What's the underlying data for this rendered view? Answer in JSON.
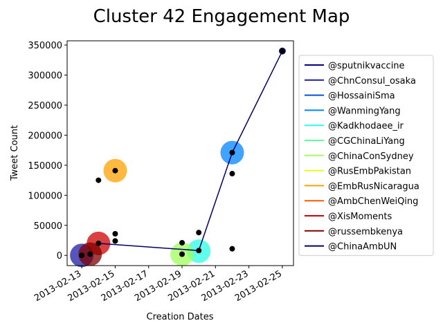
{
  "chart_data": {
    "type": "scatter",
    "title": "Cluster 42 Engagement Map",
    "xlabel": "Creation Dates",
    "ylabel": "Tweet Count",
    "ylim": [
      -17000,
      357000
    ],
    "xlim": [
      "2013-02-12T03:00",
      "2013-02-25T16:00"
    ],
    "x_ticks": [
      "2013-02-13",
      "2013-02-15",
      "2013-02-17",
      "2013-02-19",
      "2013-02-21",
      "2013-02-23",
      "2013-02-25"
    ],
    "y_ticks": [
      0,
      50000,
      100000,
      150000,
      200000,
      250000,
      300000,
      350000
    ],
    "grid": false,
    "legend_position": "right",
    "series": [
      {
        "name": "@sputnikvaccine",
        "color": "#00007f",
        "points": [
          {
            "x": "2013-02-25",
            "y": 340000,
            "size": "small"
          }
        ]
      },
      {
        "name": "@ChnConsul_osaka",
        "color": "#1c1ca6",
        "points": [
          {
            "x": "2013-02-13",
            "y": 0,
            "size": "large"
          }
        ]
      },
      {
        "name": "@HossainiSma",
        "color": "#0050d8",
        "points": []
      },
      {
        "name": "@WanmingYang",
        "color": "#0085ff",
        "points": [
          {
            "x": "2013-02-22",
            "y": 171000,
            "size": "large"
          }
        ]
      },
      {
        "name": "@Kadkhodaee_ir",
        "color": "#29ffe6",
        "points": [
          {
            "x": "2013-02-20",
            "y": 7000,
            "size": "large"
          }
        ]
      },
      {
        "name": "@CGChinaLiYang",
        "color": "#5cffa0",
        "points": []
      },
      {
        "name": "@ChinaConSydney",
        "color": "#a0ff5c",
        "points": [
          {
            "x": "2013-02-19",
            "y": 2000,
            "size": "large"
          }
        ]
      },
      {
        "name": "@RusEmbPakistan",
        "color": "#e6ff19",
        "points": []
      },
      {
        "name": "@EmbRusNicaragua",
        "color": "#ffa000",
        "points": [
          {
            "x": "2013-02-15",
            "y": 141000,
            "size": "large"
          }
        ]
      },
      {
        "name": "@AmbChenWeiQing",
        "color": "#ff5a00",
        "points": []
      },
      {
        "name": "@XisMoments",
        "color": "#cc0000",
        "points": [
          {
            "x": "2013-02-14",
            "y": 20000,
            "size": "large"
          }
        ]
      },
      {
        "name": "@russembkenya",
        "color": "#7f0000",
        "points": [
          {
            "x": "2013-02-13T12:00",
            "y": 2000,
            "size": "large"
          }
        ]
      },
      {
        "name": "@ChinaAmbUN",
        "color": "#000066",
        "points": []
      }
    ],
    "line": {
      "name": "@ChinaAmbUN",
      "color": "#00006b",
      "x": [
        "2013-02-14",
        "2013-02-20",
        "2013-02-22",
        "2013-02-25"
      ],
      "y": [
        20000,
        8000,
        171000,
        340000
      ]
    },
    "black_points": {
      "color": "#000000",
      "x": [
        "2013-02-13",
        "2013-02-13T12:00",
        "2013-02-14",
        "2013-02-14",
        "2013-02-15",
        "2013-02-15",
        "2013-02-15",
        "2013-02-19",
        "2013-02-19",
        "2013-02-20",
        "2013-02-20",
        "2013-02-22",
        "2013-02-22",
        "2013-02-22",
        "2013-02-25"
      ],
      "y": [
        0,
        2000,
        125000,
        20000,
        141000,
        36000,
        24000,
        21000,
        2000,
        38000,
        8000,
        171000,
        136000,
        11000,
        340000
      ]
    }
  }
}
